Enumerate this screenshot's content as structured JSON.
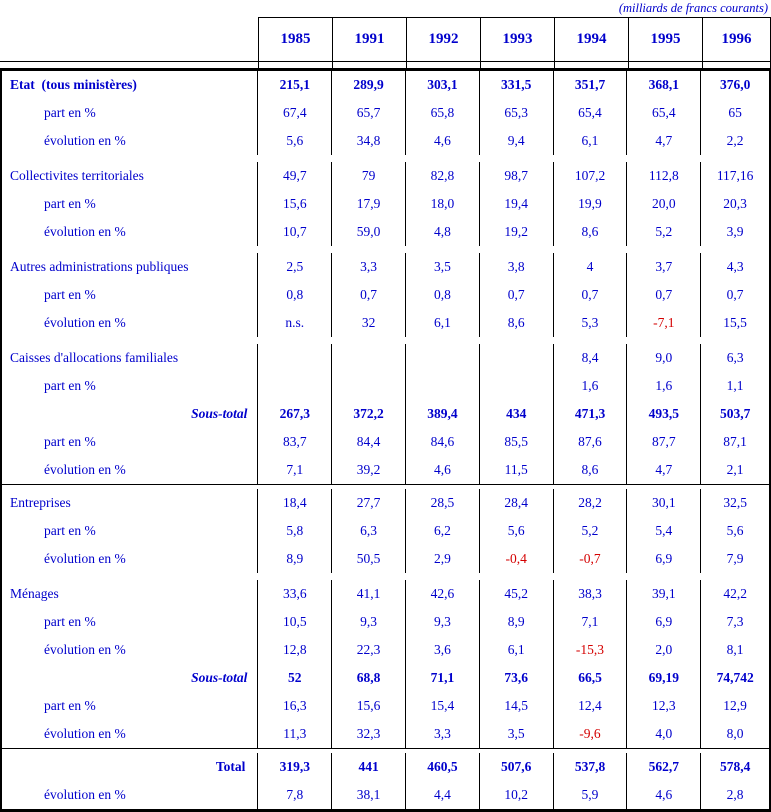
{
  "caption": "(milliards de francs courants)",
  "colors": {
    "text_blue": "#0000cc",
    "negative_red": "#d40000",
    "border_black": "#000000"
  },
  "years": [
    "1985",
    "1991",
    "1992",
    "1993",
    "1994",
    "1995",
    "1996"
  ],
  "row_labels": {
    "part": "part en %",
    "evolution": "évolution en %"
  },
  "rows": [
    {
      "label": "Etat  (tous ministères)",
      "style": "group-bold",
      "bold_values": true,
      "values": [
        "215,1",
        "289,9",
        "303,1",
        "331,5",
        "351,7",
        "368,1",
        "376,0"
      ]
    },
    {
      "label": "part en %",
      "style": "sub",
      "values": [
        "67,4",
        "65,7",
        "65,8",
        "65,3",
        "65,4",
        "65,4",
        "65"
      ]
    },
    {
      "label": "évolution en %",
      "style": "sub",
      "values": [
        "5,6",
        "34,8",
        "4,6",
        "9,4",
        "6,1",
        "4,7",
        "2,2"
      ]
    },
    {
      "label": "Collectivites territoriales",
      "style": "group",
      "gap": true,
      "values": [
        "49,7",
        "79",
        "82,8",
        "98,7",
        "107,2",
        "112,8",
        "117,16"
      ]
    },
    {
      "label": "part en %",
      "style": "sub",
      "values": [
        "15,6",
        "17,9",
        "18,0",
        "19,4",
        "19,9",
        "20,0",
        "20,3"
      ]
    },
    {
      "label": "évolution en %",
      "style": "sub",
      "values": [
        "10,7",
        "59,0",
        "4,8",
        "19,2",
        "8,6",
        "5,2",
        "3,9"
      ]
    },
    {
      "label": "Autres administrations publiques",
      "style": "group",
      "gap": true,
      "values": [
        "2,5",
        "3,3",
        "3,5",
        "3,8",
        "4",
        "3,7",
        "4,3"
      ]
    },
    {
      "label": "part en %",
      "style": "sub",
      "values": [
        "0,8",
        "0,7",
        "0,8",
        "0,7",
        "0,7",
        "0,7",
        "0,7"
      ]
    },
    {
      "label": "évolution en %",
      "style": "sub",
      "values": [
        "n.s.",
        "32",
        "6,1",
        "8,6",
        "5,3",
        "-7,1",
        "15,5"
      ]
    },
    {
      "label": "Caisses d'allocations familiales",
      "style": "group",
      "gap": true,
      "values": [
        "",
        "",
        "",
        "",
        "8,4",
        "9,0",
        "6,3"
      ]
    },
    {
      "label": "part en %",
      "style": "sub",
      "values": [
        "",
        "",
        "",
        "",
        "1,6",
        "1,6",
        "1,1"
      ]
    },
    {
      "label": "Sous-total",
      "style": "subtotal",
      "bold_values": true,
      "values": [
        "267,3",
        "372,2",
        "389,4",
        "434",
        "471,3",
        "493,5",
        "503,7"
      ]
    },
    {
      "label": "part en %",
      "style": "sub",
      "values": [
        "83,7",
        "84,4",
        "84,6",
        "85,5",
        "87,6",
        "87,7",
        "87,1"
      ]
    },
    {
      "label": "évolution en %",
      "style": "sub",
      "values": [
        "7,1",
        "39,2",
        "4,6",
        "11,5",
        "8,6",
        "4,7",
        "2,1"
      ]
    },
    {
      "label": "Entreprises",
      "style": "group",
      "section_start": true,
      "values": [
        "18,4",
        "27,7",
        "28,5",
        "28,4",
        "28,2",
        "30,1",
        "32,5"
      ]
    },
    {
      "label": "part en %",
      "style": "sub",
      "values": [
        "5,8",
        "6,3",
        "6,2",
        "5,6",
        "5,2",
        "5,4",
        "5,6"
      ]
    },
    {
      "label": "évolution en %",
      "style": "sub",
      "values": [
        "8,9",
        "50,5",
        "2,9",
        "-0,4",
        "-0,7",
        "6,9",
        "7,9"
      ]
    },
    {
      "label": "Ménages",
      "style": "group",
      "gap": true,
      "values": [
        "33,6",
        "41,1",
        "42,6",
        "45,2",
        "38,3",
        "39,1",
        "42,2"
      ]
    },
    {
      "label": "part en %",
      "style": "sub",
      "values": [
        "10,5",
        "9,3",
        "9,3",
        "8,9",
        "7,1",
        "6,9",
        "7,3"
      ]
    },
    {
      "label": "évolution en %",
      "style": "sub",
      "values": [
        "12,8",
        "22,3",
        "3,6",
        "6,1",
        "-15,3",
        "2,0",
        "8,1"
      ]
    },
    {
      "label": "Sous-total",
      "style": "subtotal",
      "bold_values": true,
      "values": [
        "52",
        "68,8",
        "71,1",
        "73,6",
        "66,5",
        "69,19",
        "74,742"
      ]
    },
    {
      "label": "part en %",
      "style": "sub",
      "values": [
        "16,3",
        "15,6",
        "15,4",
        "14,5",
        "12,4",
        "12,3",
        "12,9"
      ]
    },
    {
      "label": "évolution en %",
      "style": "sub",
      "values": [
        "11,3",
        "32,3",
        "3,3",
        "3,5",
        "-9,6",
        "4,0",
        "8,0"
      ]
    },
    {
      "label": "Total",
      "style": "total",
      "bold_values": true,
      "section_start": true,
      "values": [
        "319,3",
        "441",
        "460,5",
        "507,6",
        "537,8",
        "562,7",
        "578,4"
      ]
    },
    {
      "label": "évolution en %",
      "style": "sub",
      "values": [
        "7,8",
        "38,1",
        "4,4",
        "10,2",
        "5,9",
        "4,6",
        "2,8"
      ]
    }
  ]
}
